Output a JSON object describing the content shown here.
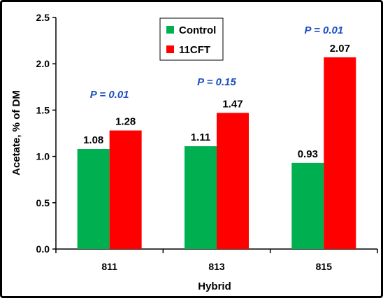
{
  "chart_data": {
    "type": "bar",
    "categories": [
      "811",
      "813",
      "815"
    ],
    "series": [
      {
        "name": "Control",
        "values": [
          1.08,
          1.11,
          0.93
        ],
        "labels": [
          "1.08",
          "1.11",
          "0.93"
        ],
        "color": "#00B050"
      },
      {
        "name": "11CFT",
        "values": [
          1.28,
          1.47,
          2.07
        ],
        "labels": [
          "1.28",
          "1.47",
          "2.07"
        ],
        "color": "#FF0000"
      }
    ],
    "xlabel": "Hybrid",
    "ylabel": "Acetate, % of DM",
    "ylim": [
      0,
      2.5
    ],
    "yticks": [
      "0.0",
      "0.5",
      "1.0",
      "1.5",
      "2.0",
      "2.5"
    ],
    "grid": false,
    "legend_position": "top-center",
    "annotations": [
      {
        "category": "811",
        "text": "P = 0.01"
      },
      {
        "category": "813",
        "text": "P = 0.15"
      },
      {
        "category": "815",
        "text": "P = 0.01"
      }
    ],
    "annotation_color": "#1F4FC0"
  }
}
